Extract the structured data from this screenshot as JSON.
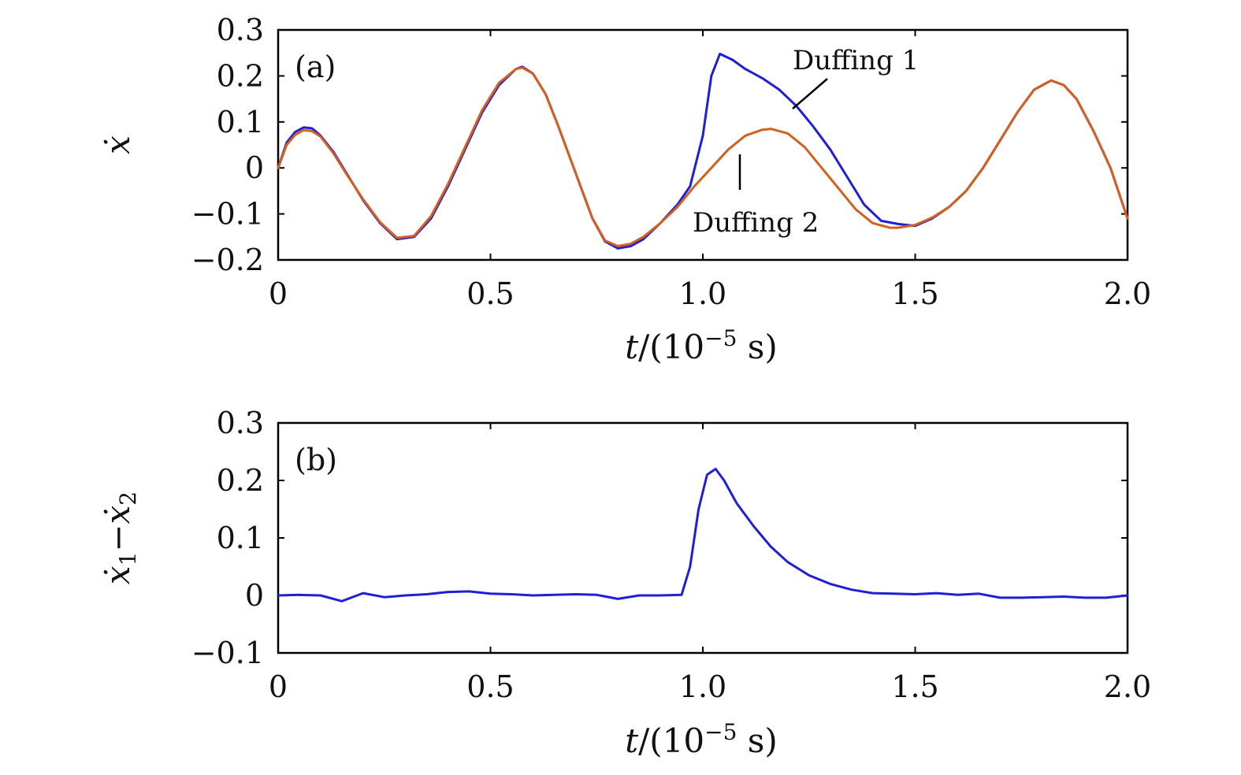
{
  "colors": {
    "duffing1": "#1f1fd6",
    "duffing2": "#d2601e",
    "axis": "#000000"
  },
  "chart_data": [
    {
      "id": "a",
      "type": "line",
      "panel_label": "(a)",
      "xlabel_t": "t",
      "xlabel_rest": "/(10",
      "xlabel_exp": "−5",
      "xlabel_unit": " s)",
      "ylabel": "ẋ",
      "xlim": [
        0,
        2.0
      ],
      "ylim": [
        -0.2,
        0.3
      ],
      "xticks": [
        0,
        0.5,
        1.0,
        1.5,
        2.0
      ],
      "xtick_labels": [
        "0",
        "0.5",
        "1.0",
        "1.5",
        "2.0"
      ],
      "yticks": [
        -0.2,
        -0.1,
        0,
        0.1,
        0.2,
        0.3
      ],
      "ytick_labels": [
        "−0.2",
        "−0.1",
        "0",
        "0.1",
        "0.2",
        "0.3"
      ],
      "annotations": {
        "duffing1": "Duffing 1",
        "duffing2": "Duffing 2"
      },
      "series": [
        {
          "name": "Duffing 1",
          "color": "#1f1fd6",
          "x": [
            0,
            0.02,
            0.04,
            0.06,
            0.08,
            0.1,
            0.13,
            0.16,
            0.2,
            0.24,
            0.28,
            0.32,
            0.36,
            0.4,
            0.44,
            0.48,
            0.52,
            0.56,
            0.575,
            0.6,
            0.63,
            0.66,
            0.7,
            0.74,
            0.77,
            0.8,
            0.83,
            0.86,
            0.9,
            0.94,
            0.97,
            1.0,
            1.02,
            1.04,
            1.07,
            1.1,
            1.14,
            1.18,
            1.22,
            1.26,
            1.3,
            1.34,
            1.38,
            1.42,
            1.46,
            1.5,
            1.54,
            1.58,
            1.62,
            1.66,
            1.7,
            1.74,
            1.78,
            1.82,
            1.85,
            1.88,
            1.92,
            1.96,
            2.0
          ],
          "y": [
            0.0,
            0.055,
            0.078,
            0.088,
            0.086,
            0.07,
            0.035,
            -0.01,
            -0.07,
            -0.12,
            -0.155,
            -0.15,
            -0.11,
            -0.04,
            0.04,
            0.12,
            0.18,
            0.215,
            0.22,
            0.205,
            0.16,
            0.09,
            -0.01,
            -0.11,
            -0.16,
            -0.175,
            -0.17,
            -0.155,
            -0.12,
            -0.08,
            -0.04,
            0.07,
            0.2,
            0.248,
            0.235,
            0.215,
            0.195,
            0.17,
            0.135,
            0.09,
            0.04,
            -0.02,
            -0.08,
            -0.115,
            -0.122,
            -0.126,
            -0.11,
            -0.085,
            -0.05,
            0.0,
            0.06,
            0.12,
            0.17,
            0.19,
            0.18,
            0.15,
            0.08,
            0.0,
            -0.11
          ]
        },
        {
          "name": "Duffing 2",
          "color": "#d2601e",
          "x": [
            0,
            0.02,
            0.04,
            0.06,
            0.08,
            0.1,
            0.13,
            0.16,
            0.2,
            0.24,
            0.28,
            0.32,
            0.36,
            0.4,
            0.44,
            0.48,
            0.52,
            0.56,
            0.575,
            0.6,
            0.63,
            0.66,
            0.7,
            0.74,
            0.77,
            0.8,
            0.83,
            0.86,
            0.9,
            0.94,
            0.98,
            1.02,
            1.06,
            1.1,
            1.14,
            1.16,
            1.2,
            1.24,
            1.28,
            1.32,
            1.36,
            1.4,
            1.44,
            1.46,
            1.5,
            1.54,
            1.58,
            1.62,
            1.66,
            1.7,
            1.74,
            1.78,
            1.82,
            1.85,
            1.88,
            1.92,
            1.96,
            2.0
          ],
          "y": [
            0.0,
            0.05,
            0.072,
            0.082,
            0.08,
            0.068,
            0.032,
            -0.012,
            -0.068,
            -0.118,
            -0.152,
            -0.148,
            -0.105,
            -0.035,
            0.045,
            0.125,
            0.185,
            0.215,
            0.218,
            0.205,
            0.16,
            0.09,
            -0.01,
            -0.11,
            -0.158,
            -0.17,
            -0.165,
            -0.15,
            -0.12,
            -0.085,
            -0.04,
            0.0,
            0.04,
            0.07,
            0.083,
            0.085,
            0.075,
            0.045,
            0.0,
            -0.045,
            -0.09,
            -0.12,
            -0.13,
            -0.13,
            -0.124,
            -0.108,
            -0.085,
            -0.05,
            0.0,
            0.06,
            0.12,
            0.17,
            0.19,
            0.18,
            0.15,
            0.08,
            0.0,
            -0.11
          ]
        }
      ]
    },
    {
      "id": "b",
      "type": "line",
      "panel_label": "(b)",
      "xlabel_t": "t",
      "xlabel_rest": "/(10",
      "xlabel_exp": "−5",
      "xlabel_unit": " s)",
      "ylabel_main": "ẋ",
      "ylabel_sub1": "1",
      "ylabel_minus": "−",
      "ylabel_sub2": "2",
      "xlim": [
        0,
        2.0
      ],
      "ylim": [
        -0.1,
        0.3
      ],
      "xticks": [
        0,
        0.5,
        1.0,
        1.5,
        2.0
      ],
      "xtick_labels": [
        "0",
        "0.5",
        "1.0",
        "1.5",
        "2.0"
      ],
      "yticks": [
        -0.1,
        0,
        0.1,
        0.2,
        0.3
      ],
      "ytick_labels": [
        "−0.1",
        "0",
        "0.1",
        "0.2",
        "0.3"
      ],
      "series": [
        {
          "name": "ẋ1 − ẋ2",
          "color": "#1f1fd6",
          "x": [
            0,
            0.05,
            0.1,
            0.15,
            0.2,
            0.25,
            0.3,
            0.35,
            0.4,
            0.45,
            0.5,
            0.55,
            0.6,
            0.65,
            0.7,
            0.75,
            0.8,
            0.85,
            0.9,
            0.95,
            0.97,
            0.99,
            1.01,
            1.03,
            1.05,
            1.08,
            1.12,
            1.16,
            1.2,
            1.25,
            1.3,
            1.35,
            1.4,
            1.45,
            1.5,
            1.55,
            1.6,
            1.65,
            1.7,
            1.75,
            1.8,
            1.85,
            1.9,
            1.95,
            2.0
          ],
          "y": [
            0,
            0.001,
            0,
            -0.01,
            0.004,
            -0.003,
            0,
            0.002,
            0.006,
            0.007,
            0.003,
            0.002,
            0,
            0.001,
            0.002,
            0.001,
            -0.006,
            0,
            0,
            0.001,
            0.05,
            0.15,
            0.21,
            0.22,
            0.2,
            0.16,
            0.12,
            0.085,
            0.058,
            0.035,
            0.02,
            0.01,
            0.004,
            0.003,
            0.002,
            0.004,
            0.001,
            0.003,
            -0.004,
            -0.004,
            -0.003,
            -0.002,
            -0.004,
            -0.004,
            0
          ]
        }
      ]
    }
  ]
}
